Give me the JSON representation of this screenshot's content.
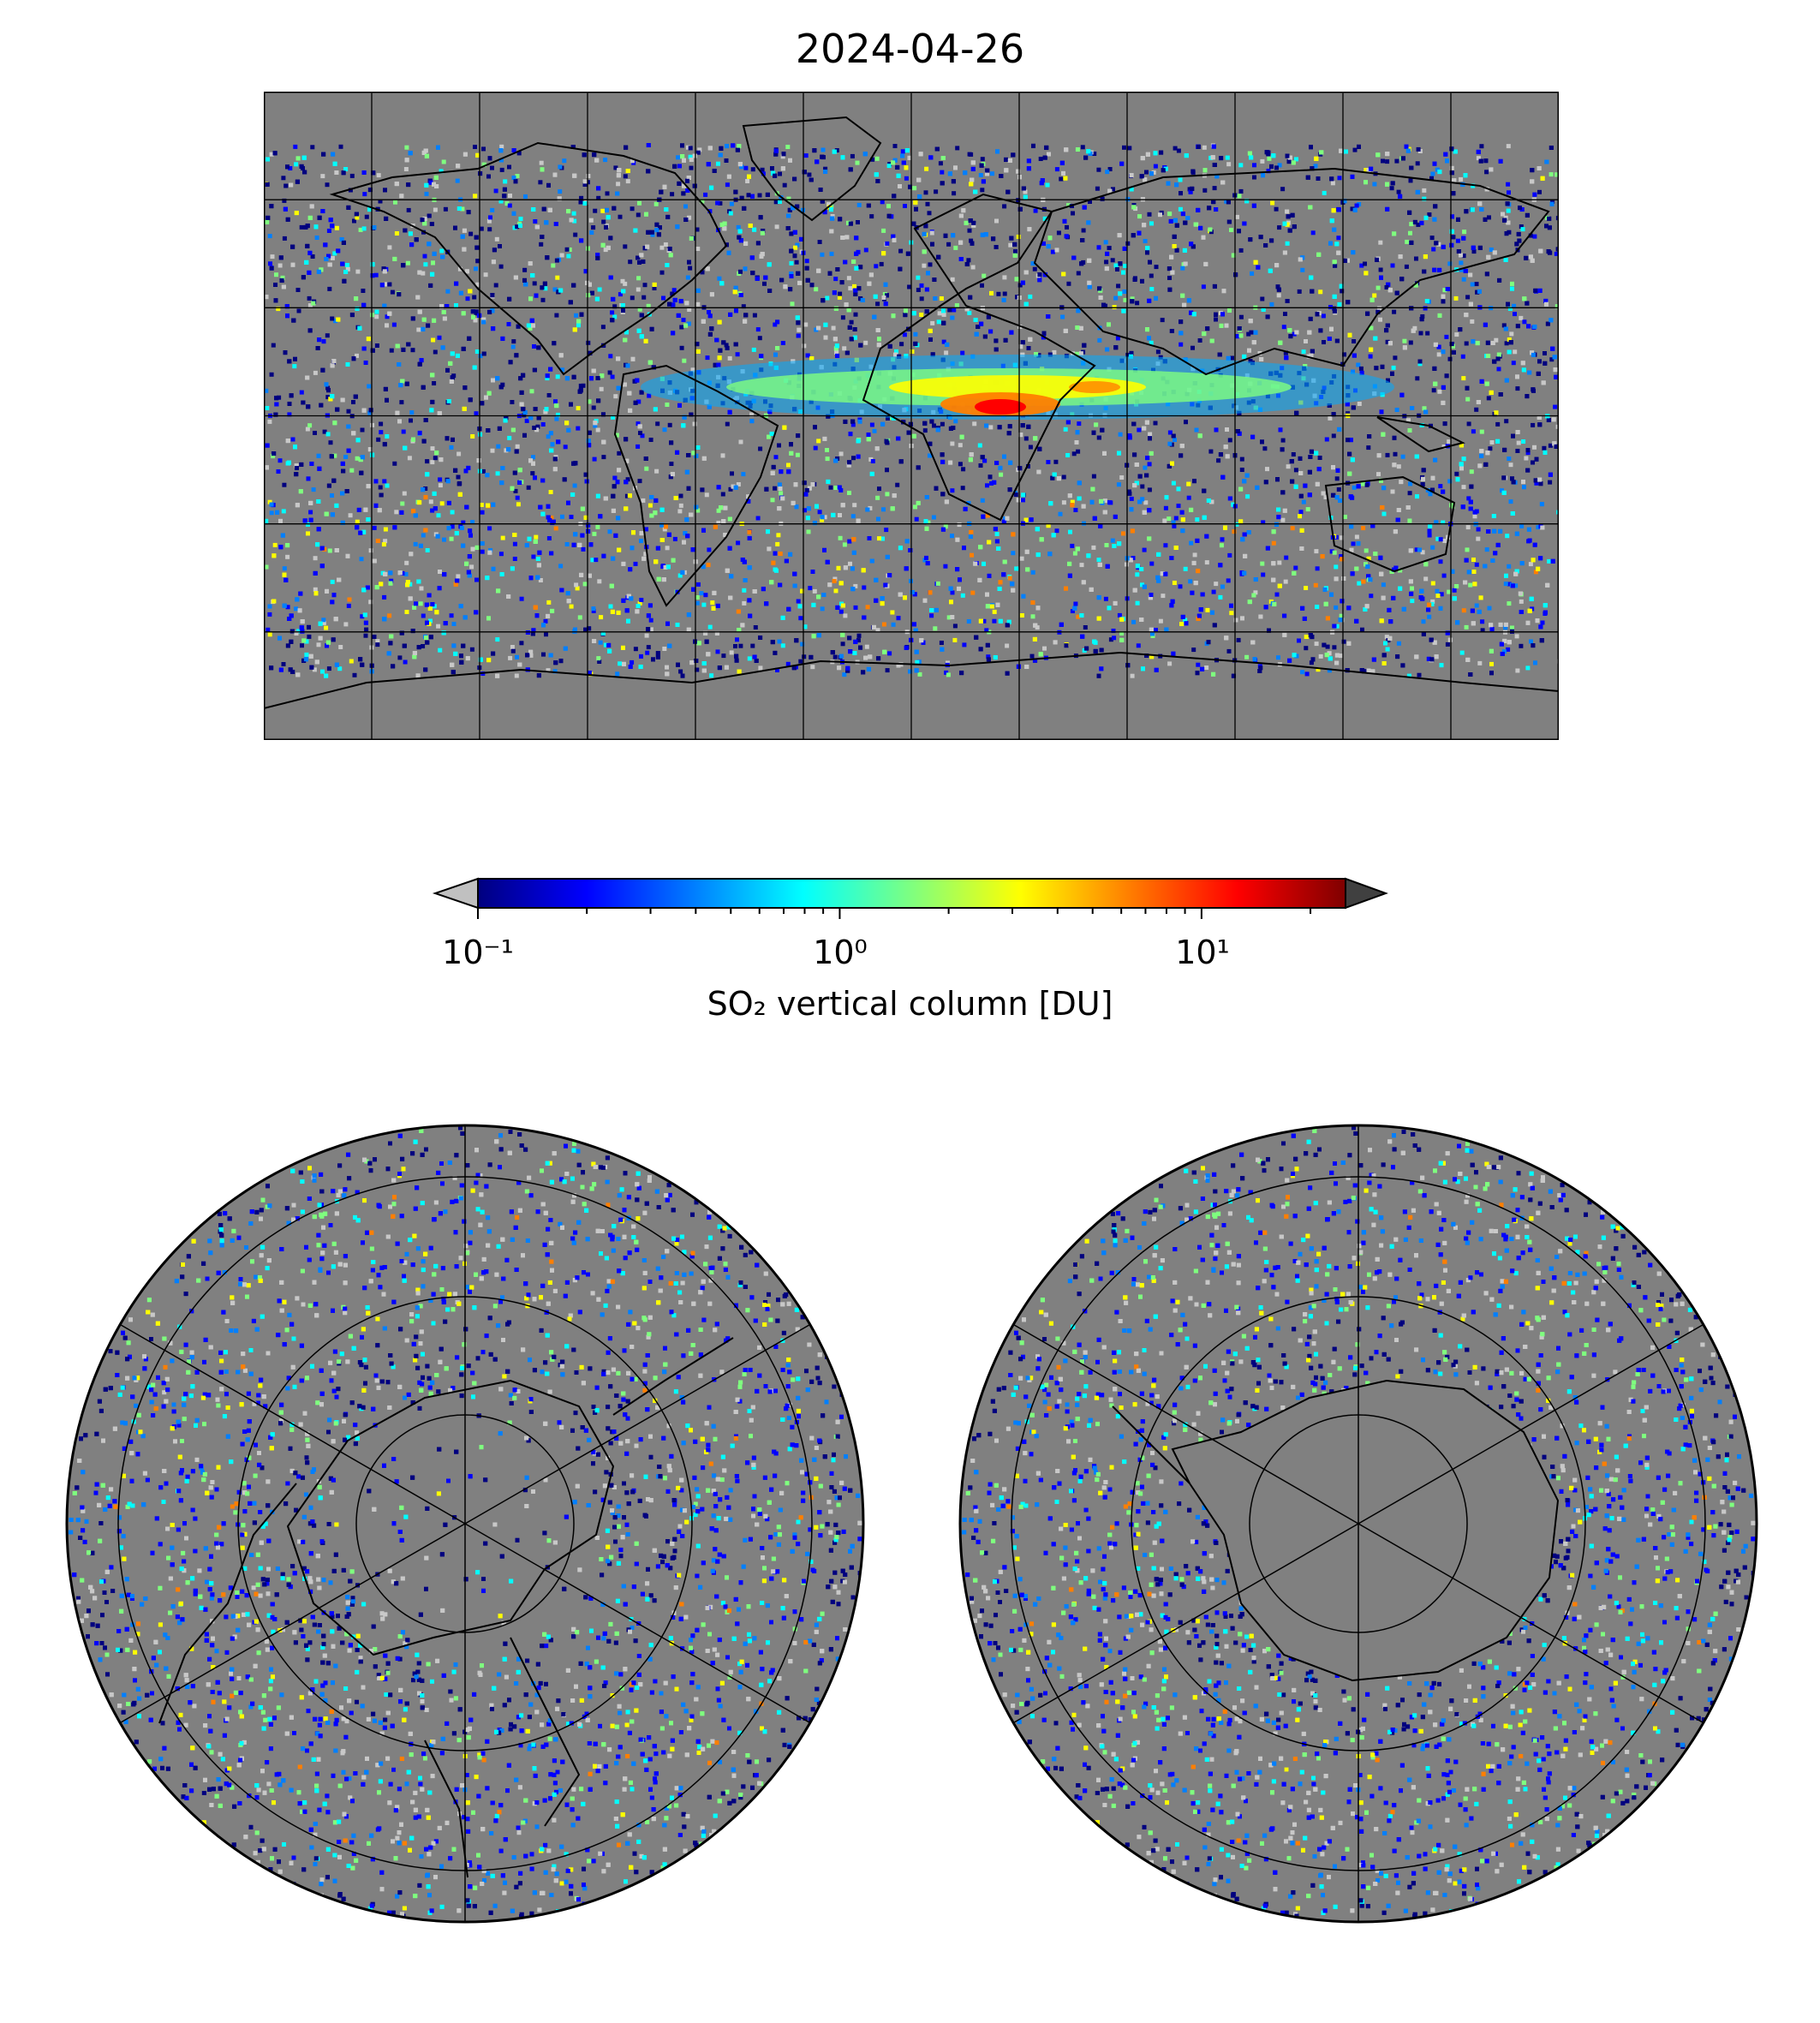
{
  "title": "2024-04-26",
  "colorbar": {
    "label": "SO₂ vertical column [DU]",
    "scale": "log",
    "min": 0.1,
    "max": 25,
    "ticks": [
      "10⁻¹",
      "10⁰",
      "10¹"
    ],
    "colormap": [
      "#00007f",
      "#0000ff",
      "#007fff",
      "#00ffff",
      "#7fff7f",
      "#ffff00",
      "#ff7f00",
      "#ff0000",
      "#7f0000"
    ],
    "under_color": "#c0c0c0",
    "over_color": "#404040"
  },
  "colors": {
    "no_data": "#808080",
    "coastline": "#000000"
  },
  "panels": [
    {
      "name": "global",
      "projection": "equirectangular"
    },
    {
      "name": "north-pole",
      "projection": "polar-stereographic"
    },
    {
      "name": "south-pole",
      "projection": "polar-stereographic"
    }
  ]
}
